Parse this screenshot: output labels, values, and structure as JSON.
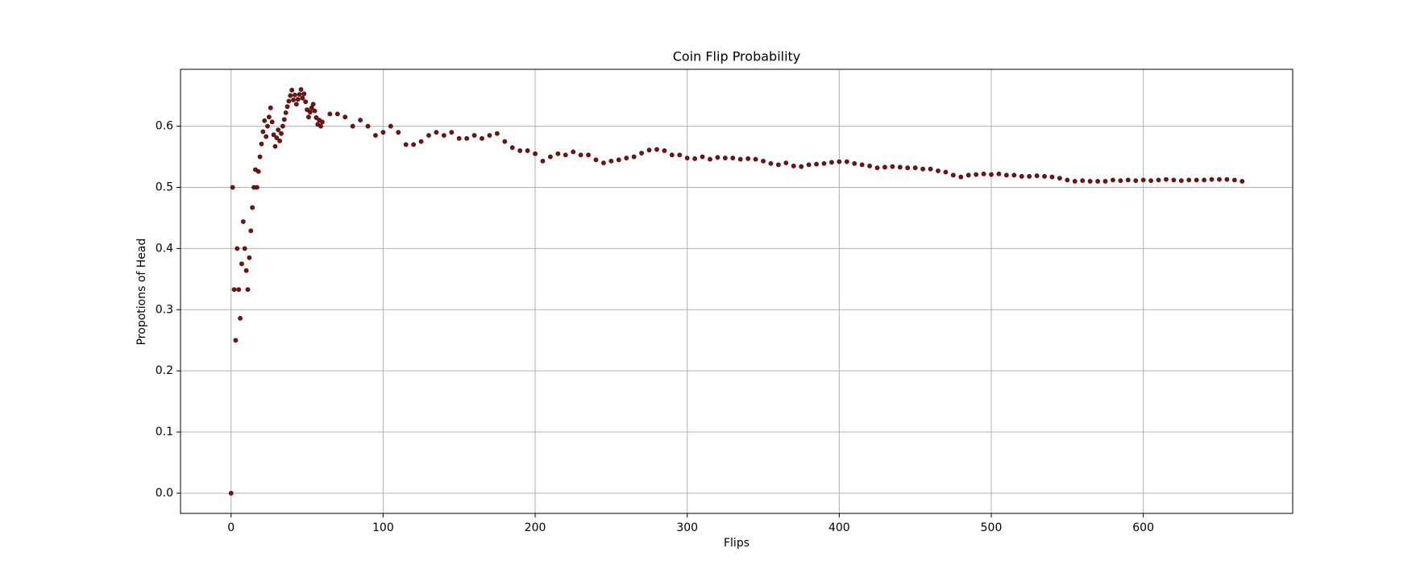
{
  "chart_data": {
    "type": "scatter",
    "title": "Coin Flip Probability",
    "xlabel": "Flips",
    "ylabel": "Propotions of Head",
    "color": "#7a1212",
    "grid": true,
    "xlim": [
      -33.25,
      698.25
    ],
    "ylim": [
      -0.033,
      0.693
    ],
    "xticks": [
      0,
      100,
      200,
      300,
      400,
      500,
      600
    ],
    "yticks": [
      {
        "value": 0,
        "label": "0.0"
      },
      0.1,
      0.2,
      0.3,
      0.4,
      0.5,
      0.6
    ],
    "x": [
      0,
      1,
      2,
      3,
      4,
      5,
      6,
      7,
      8,
      9,
      10,
      11,
      12,
      13,
      14,
      15,
      16,
      17,
      18,
      19,
      20,
      21,
      22,
      23,
      24,
      25,
      26,
      27,
      28,
      29,
      30,
      31,
      32,
      33,
      34,
      35,
      36,
      37,
      38,
      39,
      40,
      41,
      42,
      43,
      44,
      45,
      46,
      47,
      48,
      49,
      50,
      51,
      52,
      53,
      54,
      55,
      56,
      57,
      58,
      59,
      60,
      65,
      70,
      75,
      80,
      85,
      90,
      95,
      100,
      105,
      110,
      115,
      120,
      125,
      130,
      135,
      140,
      145,
      150,
      155,
      160,
      165,
      170,
      175,
      180,
      185,
      190,
      195,
      200,
      205,
      210,
      215,
      220,
      225,
      230,
      235,
      240,
      245,
      250,
      255,
      260,
      265,
      270,
      275,
      280,
      285,
      290,
      295,
      300,
      305,
      310,
      315,
      320,
      325,
      330,
      335,
      340,
      345,
      350,
      355,
      360,
      365,
      370,
      375,
      380,
      385,
      390,
      395,
      400,
      405,
      410,
      415,
      420,
      425,
      430,
      435,
      440,
      445,
      450,
      455,
      460,
      465,
      470,
      475,
      480,
      485,
      490,
      495,
      500,
      505,
      510,
      515,
      520,
      525,
      530,
      535,
      540,
      545,
      550,
      555,
      560,
      565,
      570,
      575,
      580,
      585,
      590,
      595,
      600,
      605,
      610,
      615,
      620,
      625,
      630,
      635,
      640,
      645,
      650,
      655,
      660,
      665
    ],
    "values": [
      0,
      0.5,
      0.333,
      0.25,
      0.4,
      0.333,
      0.286,
      0.375,
      0.444,
      0.4,
      0.364,
      0.333,
      0.385,
      0.429,
      0.467,
      0.5,
      0.529,
      0.5,
      0.526,
      0.55,
      0.571,
      0.591,
      0.609,
      0.583,
      0.6,
      0.615,
      0.63,
      0.607,
      0.586,
      0.567,
      0.581,
      0.594,
      0.576,
      0.588,
      0.6,
      0.611,
      0.622,
      0.632,
      0.641,
      0.65,
      0.659,
      0.643,
      0.651,
      0.636,
      0.644,
      0.652,
      0.66,
      0.646,
      0.653,
      0.64,
      0.627,
      0.615,
      0.623,
      0.63,
      0.636,
      0.625,
      0.614,
      0.603,
      0.61,
      0.6,
      0.607,
      0.62,
      0.62,
      0.615,
      0.6,
      0.61,
      0.6,
      0.585,
      0.59,
      0.6,
      0.59,
      0.57,
      0.57,
      0.575,
      0.585,
      0.59,
      0.585,
      0.59,
      0.58,
      0.58,
      0.585,
      0.58,
      0.585,
      0.588,
      0.575,
      0.565,
      0.56,
      0.56,
      0.555,
      0.543,
      0.55,
      0.555,
      0.553,
      0.558,
      0.553,
      0.553,
      0.545,
      0.54,
      0.543,
      0.545,
      0.548,
      0.55,
      0.556,
      0.561,
      0.562,
      0.56,
      0.553,
      0.553,
      0.548,
      0.547,
      0.55,
      0.546,
      0.549,
      0.548,
      0.548,
      0.546,
      0.547,
      0.546,
      0.543,
      0.539,
      0.537,
      0.54,
      0.535,
      0.534,
      0.537,
      0.538,
      0.539,
      0.541,
      0.542,
      0.542,
      0.539,
      0.537,
      0.535,
      0.532,
      0.533,
      0.534,
      0.533,
      0.532,
      0.532,
      0.53,
      0.53,
      0.527,
      0.525,
      0.52,
      0.517,
      0.52,
      0.521,
      0.522,
      0.521,
      0.522,
      0.52,
      0.52,
      0.518,
      0.518,
      0.519,
      0.518,
      0.517,
      0.515,
      0.512,
      0.51,
      0.511,
      0.51,
      0.51,
      0.51,
      0.512,
      0.511,
      0.512,
      0.511,
      0.512,
      0.511,
      0.512,
      0.513,
      0.512,
      0.511,
      0.512,
      0.512,
      0.512,
      0.513,
      0.513,
      0.513,
      0.512,
      0.51
    ]
  }
}
